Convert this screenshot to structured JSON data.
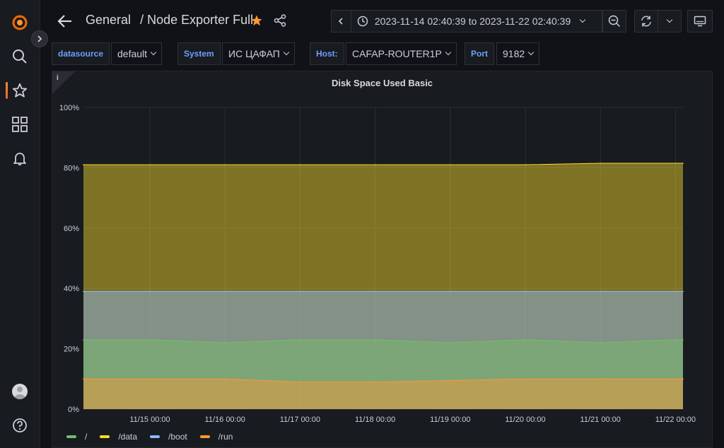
{
  "dashboard": {
    "folder": "General",
    "separator": "/",
    "name": "Node Exporter Full"
  },
  "time_range": {
    "label": "2023-11-14 02:40:39 to 2023-11-22 02:40:39"
  },
  "variables": [
    {
      "label": "datasource",
      "value": "default"
    },
    {
      "label": "System",
      "value": "ИС ЦАФАП"
    },
    {
      "label": "Host:",
      "value": "CAFAP-ROUTER1P"
    },
    {
      "label": "Port",
      "value": "9182"
    }
  ],
  "panel": {
    "title": "Disk Space Used Basic",
    "info": "i"
  },
  "colors": {
    "accent": "#ff9830",
    "root": "#73bf69",
    "data": "#fade2a",
    "boot": "#5794f2",
    "run": "#ff9830"
  },
  "icons": {
    "logo": "grafana-logo-icon",
    "search": "search-icon",
    "starred": "star-icon",
    "dashboards": "dashboards-grid-icon",
    "alerting": "bell-icon",
    "help": "help-icon"
  },
  "chart_data": {
    "type": "area",
    "title": "Disk Space Used Basic",
    "ylim": [
      0,
      100
    ],
    "y_ticks": [
      "0%",
      "20%",
      "40%",
      "60%",
      "80%",
      "100%"
    ],
    "x_ticks": [
      "11/15 00:00",
      "11/16 00:00",
      "11/17 00:00",
      "11/18 00:00",
      "11/19 00:00",
      "11/20 00:00",
      "11/21 00:00",
      "11/22 00:00"
    ],
    "x": [
      "11/14 02:40",
      "11/15 00:00",
      "11/16 00:00",
      "11/17 00:00",
      "11/18 00:00",
      "11/19 00:00",
      "11/20 00:00",
      "11/21 00:00",
      "11/22 00:00",
      "11/22 02:40"
    ],
    "series": [
      {
        "name": "/",
        "color": "#73bf69",
        "values": [
          23,
          23,
          22,
          23,
          23,
          22,
          23,
          22,
          23,
          23
        ]
      },
      {
        "name": "/data",
        "color": "#fade2a",
        "values": [
          81,
          81,
          81,
          81,
          81,
          81,
          81,
          81.5,
          81.5,
          81.5
        ]
      },
      {
        "name": "/boot",
        "color": "#8ab8ff",
        "values": [
          39,
          39,
          39,
          39,
          39,
          39,
          39,
          39,
          39,
          39
        ]
      },
      {
        "name": "/run",
        "color": "#ff9830",
        "values": [
          10,
          10,
          10,
          9,
          9,
          9.5,
          10,
          10,
          10,
          10
        ]
      }
    ],
    "grid": true,
    "legend": "bottom-left"
  }
}
